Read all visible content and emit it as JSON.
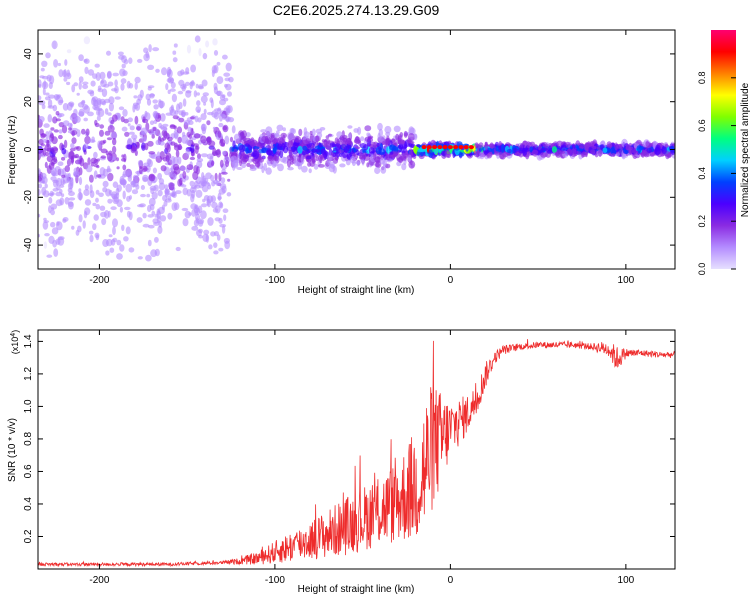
{
  "figure": {
    "title": "C2E6.2025.274.13.29.G09"
  },
  "colors": {
    "line": "#ee2c2c",
    "frame": "#000000",
    "colormap": [
      "#e6e0ff",
      "#b48cff",
      "#8a2be2",
      "#4b00ff",
      "#0040ff",
      "#00d0ff",
      "#00ff80",
      "#80ff00",
      "#ffff00",
      "#ff8000",
      "#ff0000",
      "#ff0070"
    ]
  },
  "chart_data": [
    {
      "id": "spectrogram",
      "type": "heatmap",
      "title": "C2E6.2025.274.13.29.G09",
      "xlabel": "Height of straight line (km)",
      "ylabel": "Frequency (Hz)",
      "xlim": [
        -235,
        128
      ],
      "ylim": [
        -50,
        50
      ],
      "xticks": [
        -200,
        -100,
        0,
        100
      ],
      "xtick_labels": [
        "-200",
        "-100",
        "0",
        "100"
      ],
      "yticks": [
        -40,
        -20,
        0,
        20,
        40
      ],
      "ytick_labels": [
        "-40",
        "-20",
        "0",
        "20",
        "40"
      ],
      "colorbar": {
        "label": "Normalized spectral amplitude",
        "range": [
          0,
          1
        ],
        "ticks": [
          0.0,
          0.2,
          0.4,
          0.6,
          0.8
        ],
        "tick_labels": [
          "0.0",
          "0.2",
          "0.4",
          "0.6",
          "0.8"
        ]
      },
      "description_segments": [
        {
          "x_range": [
            -235,
            -125
          ],
          "freq_spread": 50,
          "max_amp": 0.25
        },
        {
          "x_range": [
            -125,
            -20
          ],
          "freq_spread": 10,
          "max_amp": 0.45
        },
        {
          "x_range": [
            -20,
            15
          ],
          "freq_spread": 3,
          "max_amp": 0.95
        },
        {
          "x_range": [
            15,
            128
          ],
          "freq_spread": 3,
          "max_amp": 0.55
        }
      ]
    },
    {
      "id": "snr",
      "type": "line",
      "xlabel": "Height of straight line (km)",
      "ylabel": "SNR (10 * v/v)",
      "scale_label": "(x10",
      "scale_exp": "4",
      "scale_close": ")",
      "xlim": [
        -235,
        128
      ],
      "ylim": [
        0,
        1.47
      ],
      "xticks": [
        -200,
        -100,
        0,
        100
      ],
      "xtick_labels": [
        "-200",
        "-100",
        "0",
        "100"
      ],
      "yticks": [
        0.2,
        0.4,
        0.6,
        0.8,
        1.0,
        1.2,
        1.4
      ],
      "ytick_labels": [
        "0.2",
        "0.4",
        "0.6",
        "0.8",
        "1.0",
        "1.2",
        "1.4"
      ],
      "series": [
        {
          "name": "SNR",
          "x": [
            -235,
            -200,
            -160,
            -130,
            -120,
            -110,
            -100,
            -90,
            -80,
            -70,
            -60,
            -50,
            -40,
            -30,
            -20,
            -15,
            -10,
            -5,
            0,
            5,
            10,
            15,
            20,
            25,
            30,
            40,
            50,
            60,
            70,
            80,
            90,
            95,
            100,
            110,
            120,
            128
          ],
          "y": [
            0.03,
            0.03,
            0.03,
            0.04,
            0.05,
            0.07,
            0.11,
            0.15,
            0.19,
            0.23,
            0.28,
            0.33,
            0.38,
            0.44,
            0.55,
            0.65,
            0.8,
            0.82,
            0.88,
            0.92,
            0.97,
            1.05,
            1.2,
            1.3,
            1.35,
            1.37,
            1.38,
            1.38,
            1.38,
            1.37,
            1.36,
            1.3,
            1.33,
            1.33,
            1.32,
            1.32
          ],
          "noise": [
            0.01,
            0.01,
            0.01,
            0.01,
            0.02,
            0.04,
            0.07,
            0.1,
            0.12,
            0.15,
            0.18,
            0.2,
            0.22,
            0.26,
            0.35,
            0.45,
            0.4,
            0.3,
            0.18,
            0.15,
            0.12,
            0.1,
            0.08,
            0.04,
            0.03,
            0.02,
            0.02,
            0.02,
            0.02,
            0.02,
            0.05,
            0.08,
            0.03,
            0.02,
            0.02,
            0.02
          ]
        }
      ]
    }
  ]
}
